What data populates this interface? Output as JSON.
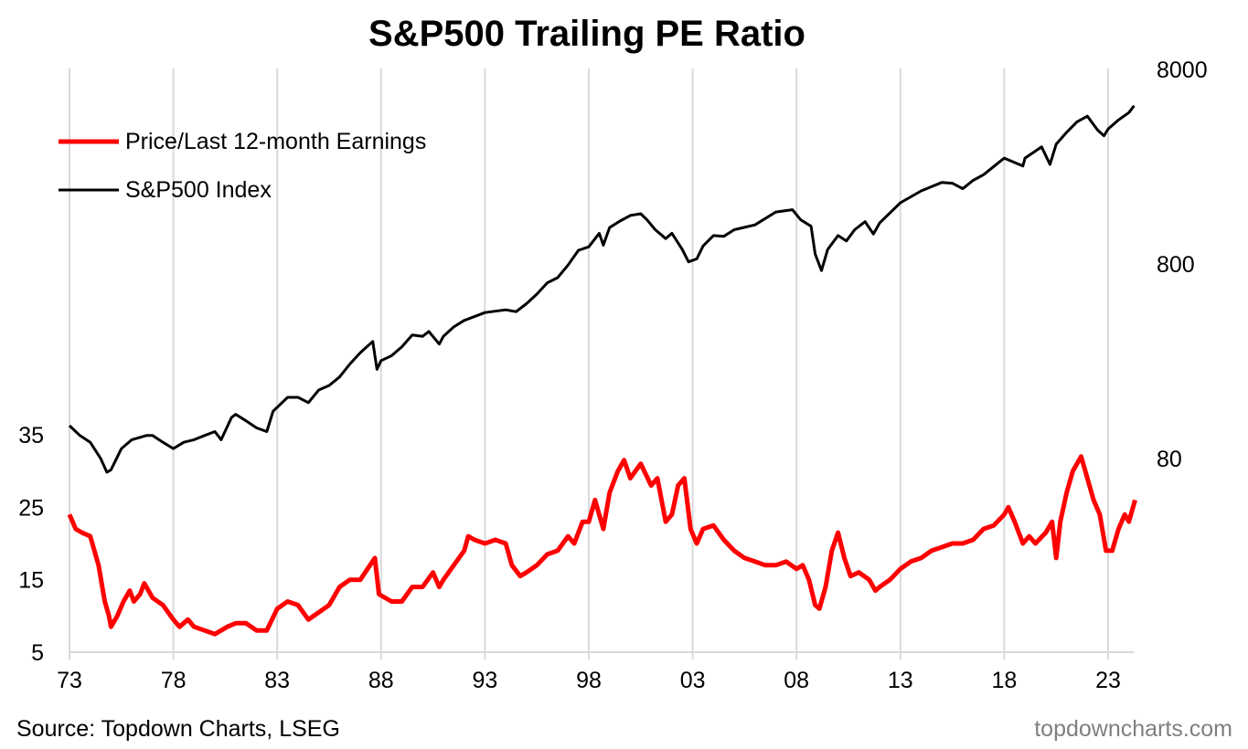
{
  "chart_data": {
    "type": "line",
    "title": "S&P500 Trailing PE Ratio",
    "source": "Source: Topdown Charts, LSEG",
    "watermark": "topdowncharts.com",
    "x_ticks": [
      {
        "year": 1973,
        "label": "73"
      },
      {
        "year": 1978,
        "label": "78"
      },
      {
        "year": 1983,
        "label": "83"
      },
      {
        "year": 1988,
        "label": "88"
      },
      {
        "year": 1993,
        "label": "93"
      },
      {
        "year": 1998,
        "label": "98"
      },
      {
        "year": 2003,
        "label": "03"
      },
      {
        "year": 2008,
        "label": "08"
      },
      {
        "year": 2013,
        "label": "13"
      },
      {
        "year": 2018,
        "label": "18"
      },
      {
        "year": 2023,
        "label": "23"
      }
    ],
    "xlim": [
      1973,
      2024.3
    ],
    "left_axis": {
      "ylim": [
        5,
        35
      ],
      "ticks": [
        {
          "v": 5,
          "label": "5"
        },
        {
          "v": 15,
          "label": "15"
        },
        {
          "v": 25,
          "label": "25"
        },
        {
          "v": 35,
          "label": "35"
        }
      ]
    },
    "right_axis": {
      "scale": "log",
      "ticks": [
        {
          "v": 80,
          "label": "80"
        },
        {
          "v": 800,
          "label": "800"
        },
        {
          "v": 8000,
          "label": "8000"
        }
      ]
    },
    "grid": "vertical",
    "legend_position": "top-left",
    "series": [
      {
        "name": "Price/Last 12-month Earnings",
        "axis": "left",
        "color": "#ff0000",
        "points": [
          [
            1973.0,
            24
          ],
          [
            1973.3,
            22
          ],
          [
            1973.6,
            21.5
          ],
          [
            1974.0,
            21
          ],
          [
            1974.4,
            17
          ],
          [
            1974.7,
            12
          ],
          [
            1974.9,
            10
          ],
          [
            1975.0,
            8.5
          ],
          [
            1975.3,
            10
          ],
          [
            1975.6,
            12
          ],
          [
            1975.9,
            13.5
          ],
          [
            1976.1,
            12
          ],
          [
            1976.4,
            13
          ],
          [
            1976.6,
            14.5
          ],
          [
            1977.0,
            12.5
          ],
          [
            1977.5,
            11.5
          ],
          [
            1978.0,
            9.5
          ],
          [
            1978.3,
            8.5
          ],
          [
            1978.7,
            9.5
          ],
          [
            1979.0,
            8.5
          ],
          [
            1979.5,
            8
          ],
          [
            1980.0,
            7.5
          ],
          [
            1980.3,
            8
          ],
          [
            1980.6,
            8.5
          ],
          [
            1981.0,
            9
          ],
          [
            1981.5,
            9
          ],
          [
            1982.0,
            8
          ],
          [
            1982.5,
            8
          ],
          [
            1983.0,
            11
          ],
          [
            1983.5,
            12
          ],
          [
            1984.0,
            11.5
          ],
          [
            1984.5,
            9.5
          ],
          [
            1985.0,
            10.5
          ],
          [
            1985.5,
            11.5
          ],
          [
            1986.0,
            14
          ],
          [
            1986.5,
            15
          ],
          [
            1987.0,
            15
          ],
          [
            1987.7,
            18
          ],
          [
            1987.9,
            13
          ],
          [
            1988.5,
            12
          ],
          [
            1989.0,
            12
          ],
          [
            1989.5,
            14
          ],
          [
            1990.0,
            14
          ],
          [
            1990.5,
            16
          ],
          [
            1990.8,
            14
          ],
          [
            1991.0,
            15
          ],
          [
            1991.5,
            17
          ],
          [
            1992.0,
            19
          ],
          [
            1992.2,
            21
          ],
          [
            1992.5,
            20.5
          ],
          [
            1993.0,
            20
          ],
          [
            1993.5,
            20.5
          ],
          [
            1994.0,
            20
          ],
          [
            1994.3,
            17
          ],
          [
            1994.7,
            15.5
          ],
          [
            1995.0,
            16
          ],
          [
            1995.5,
            17
          ],
          [
            1996.0,
            18.5
          ],
          [
            1996.5,
            19
          ],
          [
            1997.0,
            21
          ],
          [
            1997.3,
            20
          ],
          [
            1997.7,
            23
          ],
          [
            1998.0,
            23
          ],
          [
            1998.3,
            26
          ],
          [
            1998.7,
            22
          ],
          [
            1999.0,
            27
          ],
          [
            1999.4,
            30
          ],
          [
            1999.7,
            31.5
          ],
          [
            2000.0,
            29
          ],
          [
            2000.5,
            31
          ],
          [
            2001.0,
            28
          ],
          [
            2001.3,
            29
          ],
          [
            2001.7,
            23
          ],
          [
            2002.0,
            24
          ],
          [
            2002.3,
            28
          ],
          [
            2002.6,
            29
          ],
          [
            2002.9,
            22
          ],
          [
            2003.2,
            20
          ],
          [
            2003.5,
            22
          ],
          [
            2004.0,
            22.5
          ],
          [
            2004.5,
            20.5
          ],
          [
            2005.0,
            19
          ],
          [
            2005.5,
            18
          ],
          [
            2006.0,
            17.5
          ],
          [
            2006.5,
            17
          ],
          [
            2007.0,
            17
          ],
          [
            2007.5,
            17.5
          ],
          [
            2008.0,
            16.5
          ],
          [
            2008.3,
            17
          ],
          [
            2008.6,
            15
          ],
          [
            2008.9,
            11.5
          ],
          [
            2009.1,
            11
          ],
          [
            2009.4,
            14
          ],
          [
            2009.7,
            19
          ],
          [
            2010.0,
            21.5
          ],
          [
            2010.3,
            18
          ],
          [
            2010.6,
            15.5
          ],
          [
            2011.0,
            16
          ],
          [
            2011.5,
            15
          ],
          [
            2011.8,
            13.5
          ],
          [
            2012.0,
            14
          ],
          [
            2012.5,
            15
          ],
          [
            2013.0,
            16.5
          ],
          [
            2013.5,
            17.5
          ],
          [
            2014.0,
            18
          ],
          [
            2014.5,
            19
          ],
          [
            2015.0,
            19.5
          ],
          [
            2015.5,
            20
          ],
          [
            2016.0,
            20
          ],
          [
            2016.5,
            20.5
          ],
          [
            2017.0,
            22
          ],
          [
            2017.5,
            22.5
          ],
          [
            2018.0,
            24
          ],
          [
            2018.2,
            25
          ],
          [
            2018.5,
            23
          ],
          [
            2018.9,
            20
          ],
          [
            2019.2,
            21
          ],
          [
            2019.5,
            20
          ],
          [
            2020.0,
            21.5
          ],
          [
            2020.3,
            23
          ],
          [
            2020.5,
            18
          ],
          [
            2020.7,
            23
          ],
          [
            2021.0,
            27
          ],
          [
            2021.3,
            30
          ],
          [
            2021.7,
            32
          ],
          [
            2022.0,
            29
          ],
          [
            2022.3,
            26
          ],
          [
            2022.6,
            24
          ],
          [
            2022.9,
            19
          ],
          [
            2023.2,
            19
          ],
          [
            2023.5,
            22
          ],
          [
            2023.8,
            24
          ],
          [
            2024.0,
            23
          ],
          [
            2024.3,
            26
          ]
        ]
      },
      {
        "name": "S&P500 Index",
        "axis": "right",
        "color": "#000000",
        "points": [
          [
            1973.0,
            118
          ],
          [
            1973.5,
            105
          ],
          [
            1974.0,
            97
          ],
          [
            1974.5,
            80
          ],
          [
            1974.8,
            68
          ],
          [
            1975.0,
            70
          ],
          [
            1975.5,
            90
          ],
          [
            1976.0,
            100
          ],
          [
            1976.7,
            105
          ],
          [
            1977.0,
            105
          ],
          [
            1977.5,
            97
          ],
          [
            1978.0,
            90
          ],
          [
            1978.5,
            97
          ],
          [
            1979.0,
            100
          ],
          [
            1979.5,
            105
          ],
          [
            1980.0,
            110
          ],
          [
            1980.3,
            100
          ],
          [
            1980.8,
            130
          ],
          [
            1981.0,
            135
          ],
          [
            1981.5,
            125
          ],
          [
            1982.0,
            115
          ],
          [
            1982.5,
            110
          ],
          [
            1982.8,
            140
          ],
          [
            1983.5,
            165
          ],
          [
            1984.0,
            165
          ],
          [
            1984.5,
            155
          ],
          [
            1985.0,
            180
          ],
          [
            1985.5,
            190
          ],
          [
            1986.0,
            210
          ],
          [
            1986.5,
            245
          ],
          [
            1987.0,
            280
          ],
          [
            1987.6,
            320
          ],
          [
            1987.8,
            230
          ],
          [
            1988.0,
            255
          ],
          [
            1988.5,
            270
          ],
          [
            1989.0,
            300
          ],
          [
            1989.5,
            345
          ],
          [
            1990.0,
            340
          ],
          [
            1990.3,
            360
          ],
          [
            1990.8,
            310
          ],
          [
            1991.0,
            340
          ],
          [
            1991.5,
            380
          ],
          [
            1992.0,
            410
          ],
          [
            1993.0,
            450
          ],
          [
            1994.0,
            465
          ],
          [
            1994.5,
            455
          ],
          [
            1995.0,
            500
          ],
          [
            1995.5,
            560
          ],
          [
            1996.0,
            640
          ],
          [
            1996.5,
            680
          ],
          [
            1997.0,
            790
          ],
          [
            1997.5,
            940
          ],
          [
            1998.0,
            980
          ],
          [
            1998.5,
            1150
          ],
          [
            1998.7,
            1000
          ],
          [
            1999.0,
            1230
          ],
          [
            1999.5,
            1330
          ],
          [
            2000.0,
            1420
          ],
          [
            2000.5,
            1450
          ],
          [
            2000.8,
            1350
          ],
          [
            2001.2,
            1200
          ],
          [
            2001.7,
            1080
          ],
          [
            2002.0,
            1150
          ],
          [
            2002.5,
            950
          ],
          [
            2002.8,
            820
          ],
          [
            2003.2,
            850
          ],
          [
            2003.5,
            990
          ],
          [
            2004.0,
            1120
          ],
          [
            2004.5,
            1110
          ],
          [
            2005.0,
            1200
          ],
          [
            2006.0,
            1270
          ],
          [
            2007.0,
            1480
          ],
          [
            2007.8,
            1520
          ],
          [
            2008.2,
            1350
          ],
          [
            2008.7,
            1250
          ],
          [
            2008.9,
            900
          ],
          [
            2009.2,
            740
          ],
          [
            2009.5,
            950
          ],
          [
            2010.0,
            1120
          ],
          [
            2010.4,
            1050
          ],
          [
            2010.8,
            1200
          ],
          [
            2011.3,
            1320
          ],
          [
            2011.7,
            1140
          ],
          [
            2012.0,
            1300
          ],
          [
            2013.0,
            1650
          ],
          [
            2014.0,
            1900
          ],
          [
            2015.0,
            2100
          ],
          [
            2015.5,
            2080
          ],
          [
            2016.0,
            1950
          ],
          [
            2016.5,
            2150
          ],
          [
            2017.0,
            2300
          ],
          [
            2018.0,
            2800
          ],
          [
            2018.9,
            2550
          ],
          [
            2019.0,
            2800
          ],
          [
            2019.8,
            3200
          ],
          [
            2020.2,
            2600
          ],
          [
            2020.5,
            3300
          ],
          [
            2021.0,
            3800
          ],
          [
            2021.5,
            4300
          ],
          [
            2022.0,
            4600
          ],
          [
            2022.5,
            3900
          ],
          [
            2022.8,
            3650
          ],
          [
            2023.0,
            3950
          ],
          [
            2023.5,
            4400
          ],
          [
            2024.0,
            4800
          ],
          [
            2024.25,
            5200
          ]
        ]
      }
    ]
  }
}
